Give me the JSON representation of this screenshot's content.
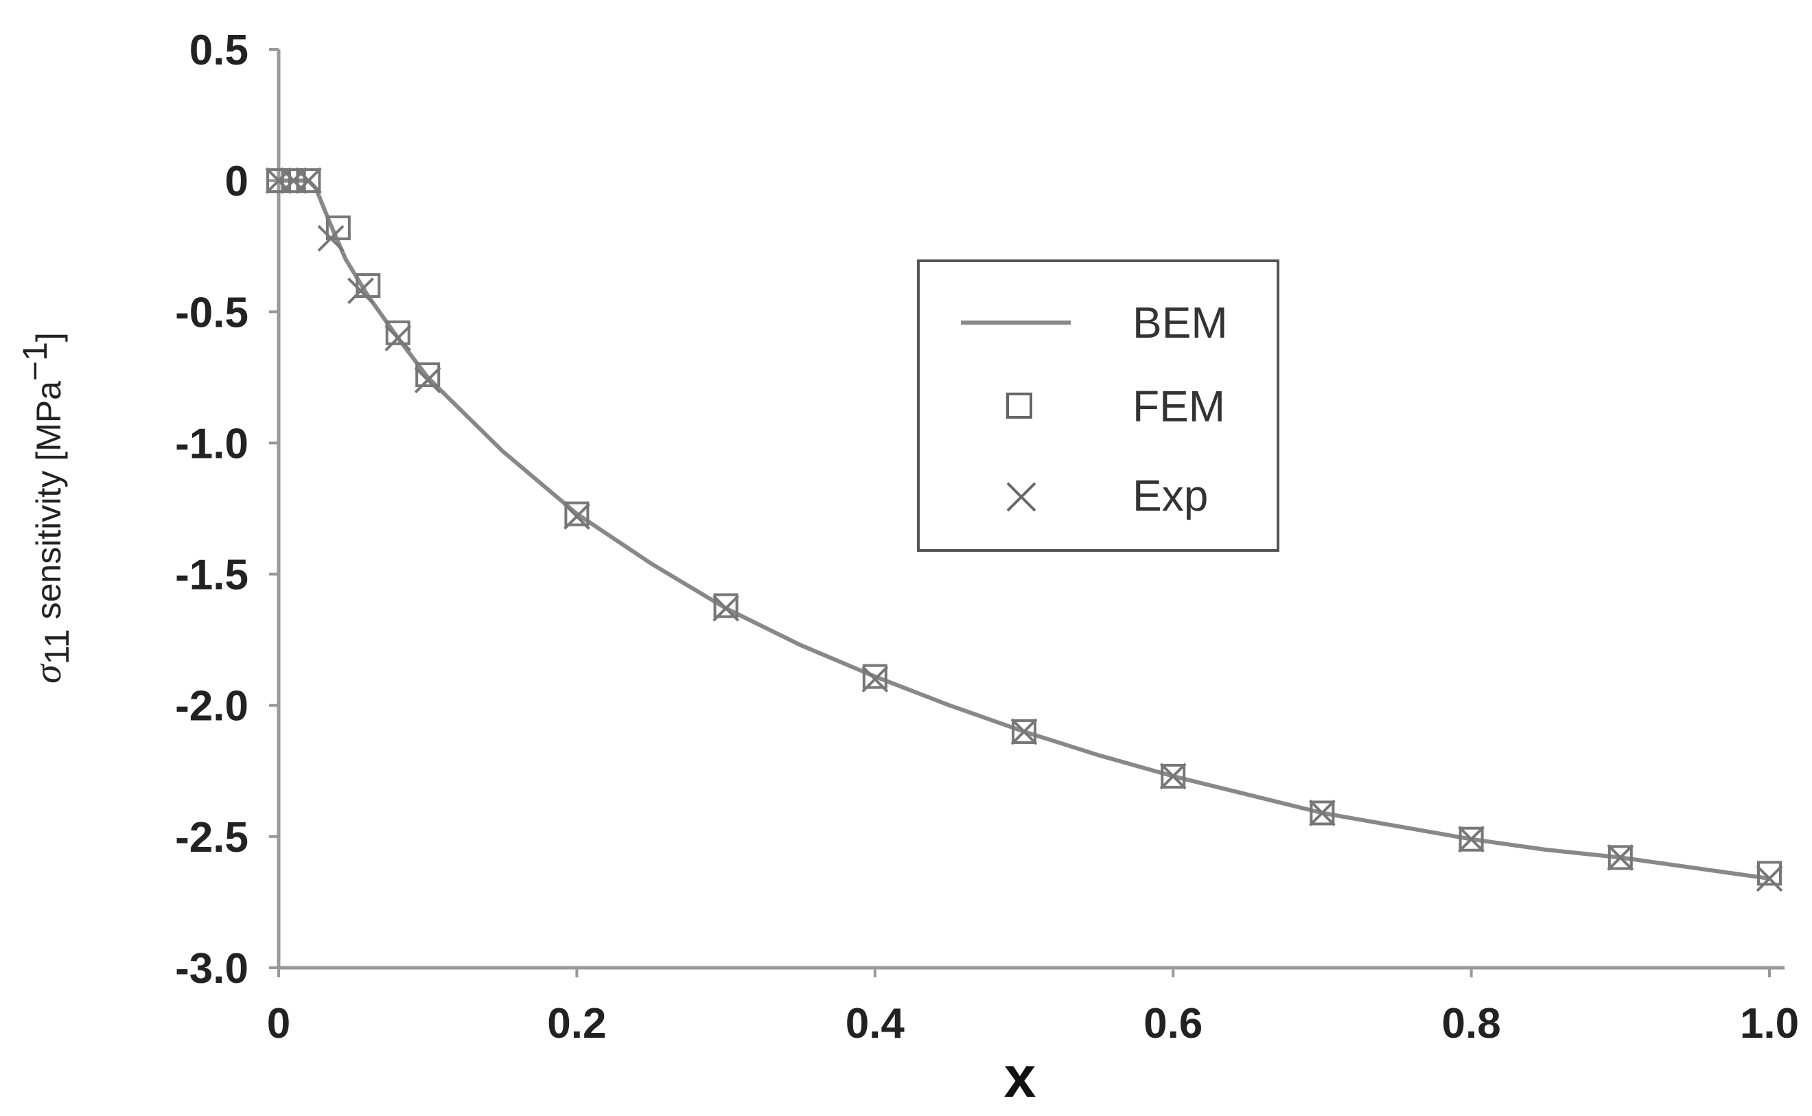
{
  "chart_data": {
    "type": "line",
    "title": "",
    "xlabel": "x",
    "ylabel": {
      "symbol": "σ",
      "subscript": "11",
      "text": " sensitivity [MPa",
      "superscript": "−1",
      "close": "]"
    },
    "xlim": [
      0,
      1.0
    ],
    "ylim": [
      -3.0,
      0.5
    ],
    "x_ticks": [
      "0",
      "0.2",
      "0.4",
      "0.6",
      "0.8",
      "1.0"
    ],
    "y_ticks": [
      "0.5",
      "0",
      "-0.5",
      "-1.0",
      "-1.5",
      "-2.0",
      "-2.5",
      "-3.0"
    ],
    "grid": false,
    "legend_position": "center-right",
    "series": [
      {
        "name": "BEM",
        "style": "line",
        "color": "#888888",
        "x": [
          0,
          0.005,
          0.01,
          0.02,
          0.025,
          0.035,
          0.045,
          0.06,
          0.08,
          0.1,
          0.15,
          0.2,
          0.25,
          0.3,
          0.35,
          0.4,
          0.45,
          0.5,
          0.55,
          0.6,
          0.65,
          0.7,
          0.75,
          0.8,
          0.85,
          0.9,
          0.95,
          1.0
        ],
        "y": [
          0,
          0,
          0,
          0,
          -0.03,
          -0.17,
          -0.3,
          -0.44,
          -0.6,
          -0.75,
          -1.03,
          -1.27,
          -1.46,
          -1.63,
          -1.77,
          -1.89,
          -2.0,
          -2.1,
          -2.19,
          -2.27,
          -2.34,
          -2.41,
          -2.46,
          -2.51,
          -2.55,
          -2.58,
          -2.62,
          -2.66
        ]
      },
      {
        "name": "FEM",
        "style": "square",
        "color": "#777777",
        "x": [
          0,
          0.01,
          0.02,
          0.04,
          0.06,
          0.08,
          0.1,
          0.2,
          0.3,
          0.4,
          0.5,
          0.6,
          0.7,
          0.8,
          0.9,
          1.0
        ],
        "y": [
          0,
          0,
          0,
          -0.18,
          -0.4,
          -0.58,
          -0.74,
          -1.27,
          -1.62,
          -1.89,
          -2.1,
          -2.27,
          -2.41,
          -2.51,
          -2.58,
          -2.64
        ]
      },
      {
        "name": "Exp",
        "style": "x",
        "color": "#777777",
        "x": [
          0,
          0.01,
          0.02,
          0.035,
          0.055,
          0.08,
          0.1,
          0.2,
          0.3,
          0.4,
          0.5,
          0.6,
          0.7,
          0.8,
          0.9,
          1.0
        ],
        "y": [
          0,
          0,
          0,
          -0.22,
          -0.42,
          -0.6,
          -0.76,
          -1.28,
          -1.63,
          -1.9,
          -2.1,
          -2.27,
          -2.41,
          -2.51,
          -2.58,
          -2.66
        ]
      }
    ]
  }
}
